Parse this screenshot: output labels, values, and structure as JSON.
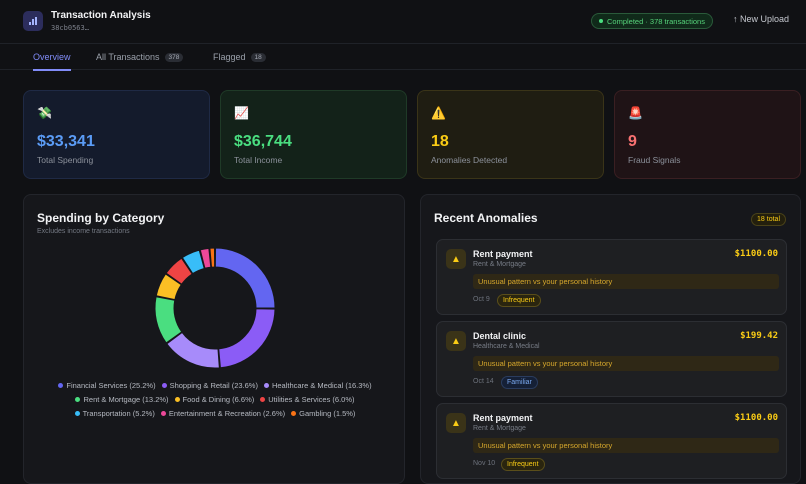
{
  "header": {
    "title": "Transaction Analysis",
    "subtitle": "38cb0563…",
    "status": "Completed · 378 transactions",
    "upload_label": "↑ New Upload"
  },
  "tabs": [
    {
      "label": "Overview",
      "count": ""
    },
    {
      "label": "All Transactions",
      "count": "378"
    },
    {
      "label": "Flagged",
      "count": "18"
    }
  ],
  "cards": [
    {
      "icon": "💸",
      "icon_name": "money-wings-icon",
      "value": "$33,341",
      "label": "Total Spending"
    },
    {
      "icon": "📈",
      "icon_name": "chart-up-icon",
      "value": "$36,744",
      "label": "Total Income"
    },
    {
      "icon": "⚠️",
      "icon_name": "warning-icon",
      "value": "18",
      "label": "Anomalies Detected"
    },
    {
      "icon": "🚨",
      "icon_name": "alarm-icon",
      "value": "9",
      "label": "Fraud Signals"
    }
  ],
  "spending": {
    "title": "Spending by Category",
    "subtitle": "Excludes income transactions"
  },
  "chart_data": {
    "type": "pie",
    "categories": [
      "Financial Services",
      "Shopping & Retail",
      "Healthcare & Medical",
      "Rent & Mortgage",
      "Food & Dining",
      "Utilities & Services",
      "Transportation",
      "Entertainment & Recreation",
      "Gambling"
    ],
    "values": [
      25.2,
      23.6,
      16.3,
      13.2,
      6.6,
      6.0,
      5.2,
      2.6,
      1.5
    ],
    "legend": [
      "Financial Services (25.2%)",
      "Shopping & Retail (23.6%)",
      "Healthcare & Medical (16.3%)",
      "Rent & Mortgage (13.2%)",
      "Food & Dining (6.6%)",
      "Utilities & Services (6.0%)",
      "Transportation (5.2%)",
      "Entertainment & Recreation (2.6%)",
      "Gambling (1.5%)"
    ],
    "colors": [
      "#6366f1",
      "#8b5cf6",
      "#a78bfa",
      "#4ade80",
      "#fbbf24",
      "#ef4444",
      "#38bdf8",
      "#ec4899",
      "#f97316"
    ],
    "legend_placement": "bottom"
  },
  "anomalies": {
    "title": "Recent Anomalies",
    "total": "18 total",
    "items": [
      {
        "name": "Rent payment",
        "category": "Rent & Mortgage",
        "amount": "$1100.00",
        "reason": "Unusual pattern vs your personal history",
        "date": "Oct 9",
        "tag": "Infrequent",
        "tag_type": "infreq"
      },
      {
        "name": "Dental clinic",
        "category": "Healthcare & Medical",
        "amount": "$199.42",
        "reason": "Unusual pattern vs your personal history",
        "date": "Oct 14",
        "tag": "Familiar",
        "tag_type": "famil"
      },
      {
        "name": "Rent payment",
        "category": "Rent & Mortgage",
        "amount": "$1100.00",
        "reason": "Unusual pattern vs your personal history",
        "date": "Nov 10",
        "tag": "Infrequent",
        "tag_type": "infreq"
      }
    ]
  }
}
